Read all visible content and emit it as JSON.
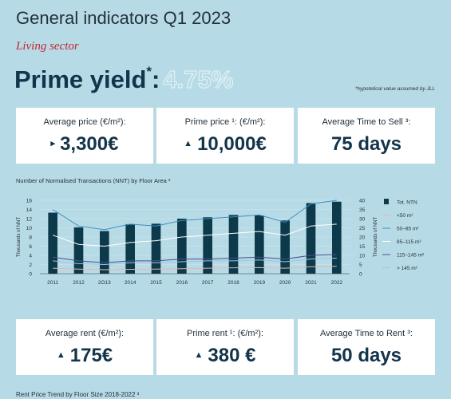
{
  "header": {
    "title": "General indicators Q1 2023",
    "subtitle": "Living sector"
  },
  "prime_yield": {
    "label": "Prime yield",
    "marker": "*",
    "colon": ":",
    "value": "4.75%",
    "footnote": "*hypotetical value assumed by JLL"
  },
  "top_cards": [
    {
      "label": "Average price (€/m²):",
      "arrow": "▸",
      "value": "3,300€"
    },
    {
      "label": "Prime price ¹: (€/m²):",
      "arrow": "▲",
      "value": "10,000€"
    },
    {
      "label": "Average Time to Sell ³:",
      "arrow": "",
      "value": "75 days"
    }
  ],
  "chart_title": "Number of Normalised Transactions (NNT) by Floor Area ²",
  "chart_data": {
    "type": "bar",
    "categories": [
      "2011",
      "2012",
      "2013",
      "2014",
      "2015",
      "2016",
      "2017",
      "2018",
      "2019",
      "2020",
      "2021",
      "2022"
    ],
    "series": [
      {
        "name": "Tot. NTN",
        "type": "bar",
        "axis": "left",
        "color": "#0d3a4a",
        "values": [
          13.3,
          10.1,
          9.3,
          10.8,
          10.9,
          12.0,
          12.3,
          12.8,
          12.7,
          11.6,
          15.4,
          15.7
        ]
      },
      {
        "name": "<50 m²",
        "type": "line",
        "axis": "right",
        "color": "#e8b4b0",
        "values": [
          3,
          2.5,
          2.2,
          2.4,
          2.5,
          2.7,
          3,
          3.2,
          3.3,
          3,
          3.8,
          4
        ]
      },
      {
        "name": "50–85 m²",
        "type": "line",
        "axis": "right",
        "color": "#3b8fc2",
        "values": [
          35,
          26,
          24,
          27,
          26,
          29,
          30,
          31,
          32,
          28,
          38,
          40
        ]
      },
      {
        "name": "85–115 m²",
        "type": "line",
        "axis": "right",
        "color": "#ffffff",
        "values": [
          21,
          16,
          15,
          17,
          18,
          20,
          21,
          22,
          23,
          21,
          26,
          27
        ]
      },
      {
        "name": "115–145 m²",
        "type": "line",
        "axis": "right",
        "color": "#4a4f8c",
        "values": [
          9,
          7,
          6,
          7,
          7,
          8,
          8,
          8.5,
          9,
          8,
          10,
          10.5
        ]
      },
      {
        "name": "> 145 m²",
        "type": "line",
        "axis": "right",
        "color": "#9fc3e0",
        "values": [
          7,
          5.5,
          5,
          6,
          6,
          6.5,
          7,
          7,
          7.5,
          6.5,
          8,
          8.5
        ]
      }
    ],
    "y_left": {
      "label": "Thousands of NNT",
      "ticks": [
        0,
        2,
        4,
        6,
        8,
        10,
        12,
        14,
        16
      ],
      "lim": [
        0,
        16
      ]
    },
    "y_right": {
      "label": "Thousands of NNT",
      "ticks": [
        0,
        5,
        10,
        15,
        20,
        25,
        30,
        35,
        40
      ],
      "lim": [
        0,
        40
      ]
    },
    "x_tick_labels": [
      "2011",
      "2012",
      "2O13",
      "2014",
      "2015",
      "2016",
      "2017",
      "2018",
      "2019",
      "2020",
      "2021",
      "2022"
    ],
    "grid": true,
    "legend_position": "right"
  },
  "bottom_cards": [
    {
      "label": "Average rent (€/m²):",
      "arrow": "▲",
      "value": "175€"
    },
    {
      "label": "Prime rent ¹: (€/m²):",
      "arrow": "▲",
      "value": "380 €"
    },
    {
      "label": "Average Time to Rent ³:",
      "arrow": "",
      "value": "50 days"
    }
  ],
  "bottom_section_title": "Rent Price Trend by Floor Size 2018-2022 ³"
}
